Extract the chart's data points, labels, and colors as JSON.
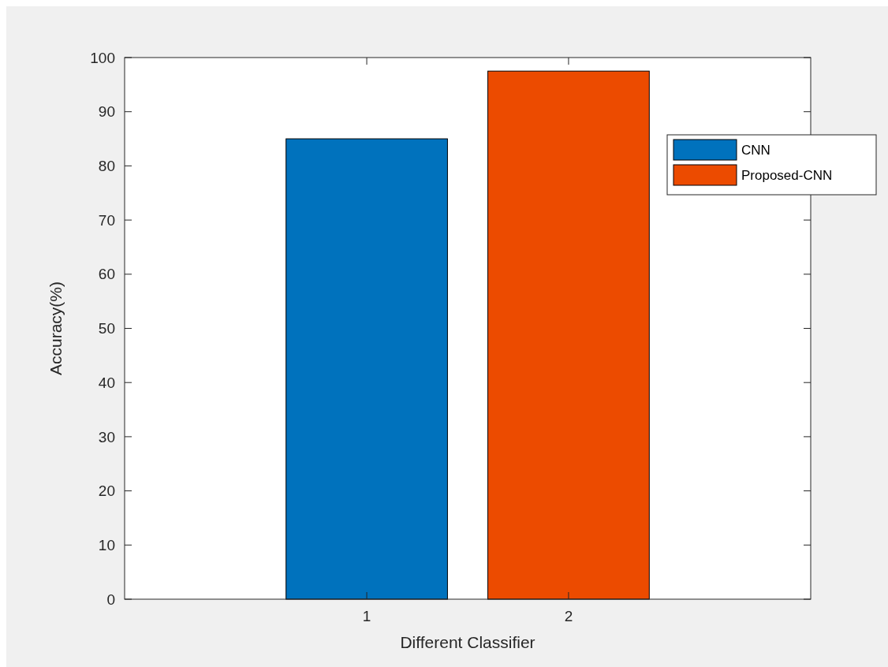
{
  "chart_data": {
    "type": "bar",
    "xlabel": "Different Classifier",
    "ylabel": "Accuracy(%)",
    "xlim": [
      -0.2,
      3.2
    ],
    "xticks": [
      1,
      2
    ],
    "ylim": [
      0,
      100
    ],
    "yticks": [
      0,
      10,
      20,
      30,
      40,
      50,
      60,
      70,
      80,
      90,
      100
    ],
    "series": [
      {
        "name": "CNN",
        "color": "#0072bd",
        "x": [
          1
        ],
        "values": [
          85
        ]
      },
      {
        "name": "Proposed-CNN",
        "color": "#ec4b00",
        "x": [
          2
        ],
        "values": [
          97.5
        ]
      }
    ],
    "legend": "top right",
    "grid": false
  }
}
